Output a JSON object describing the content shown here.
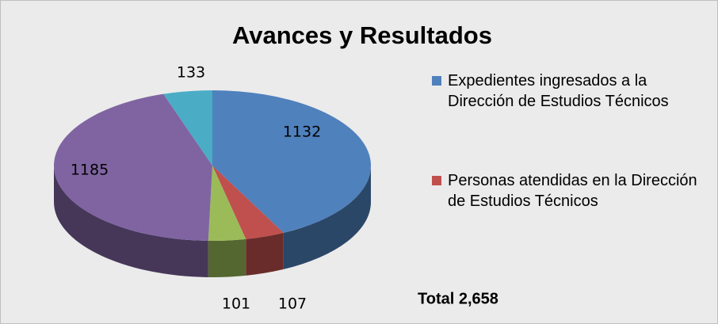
{
  "chart_data": {
    "type": "pie",
    "title": "Avances y Resultados",
    "categories": [
      "Expedientes ingresados a la Dirección de Estudios Técnicos",
      "Personas atendidas en la Dirección de Estudios Técnicos",
      null,
      null,
      null
    ],
    "values": [
      1132,
      107,
      101,
      1185,
      133
    ],
    "colors": [
      "#4f81bd",
      "#c0504d",
      "#9bbb59",
      "#8064a2",
      "#4bacc6"
    ],
    "annotation": "Total 2,658",
    "legend": "right"
  }
}
